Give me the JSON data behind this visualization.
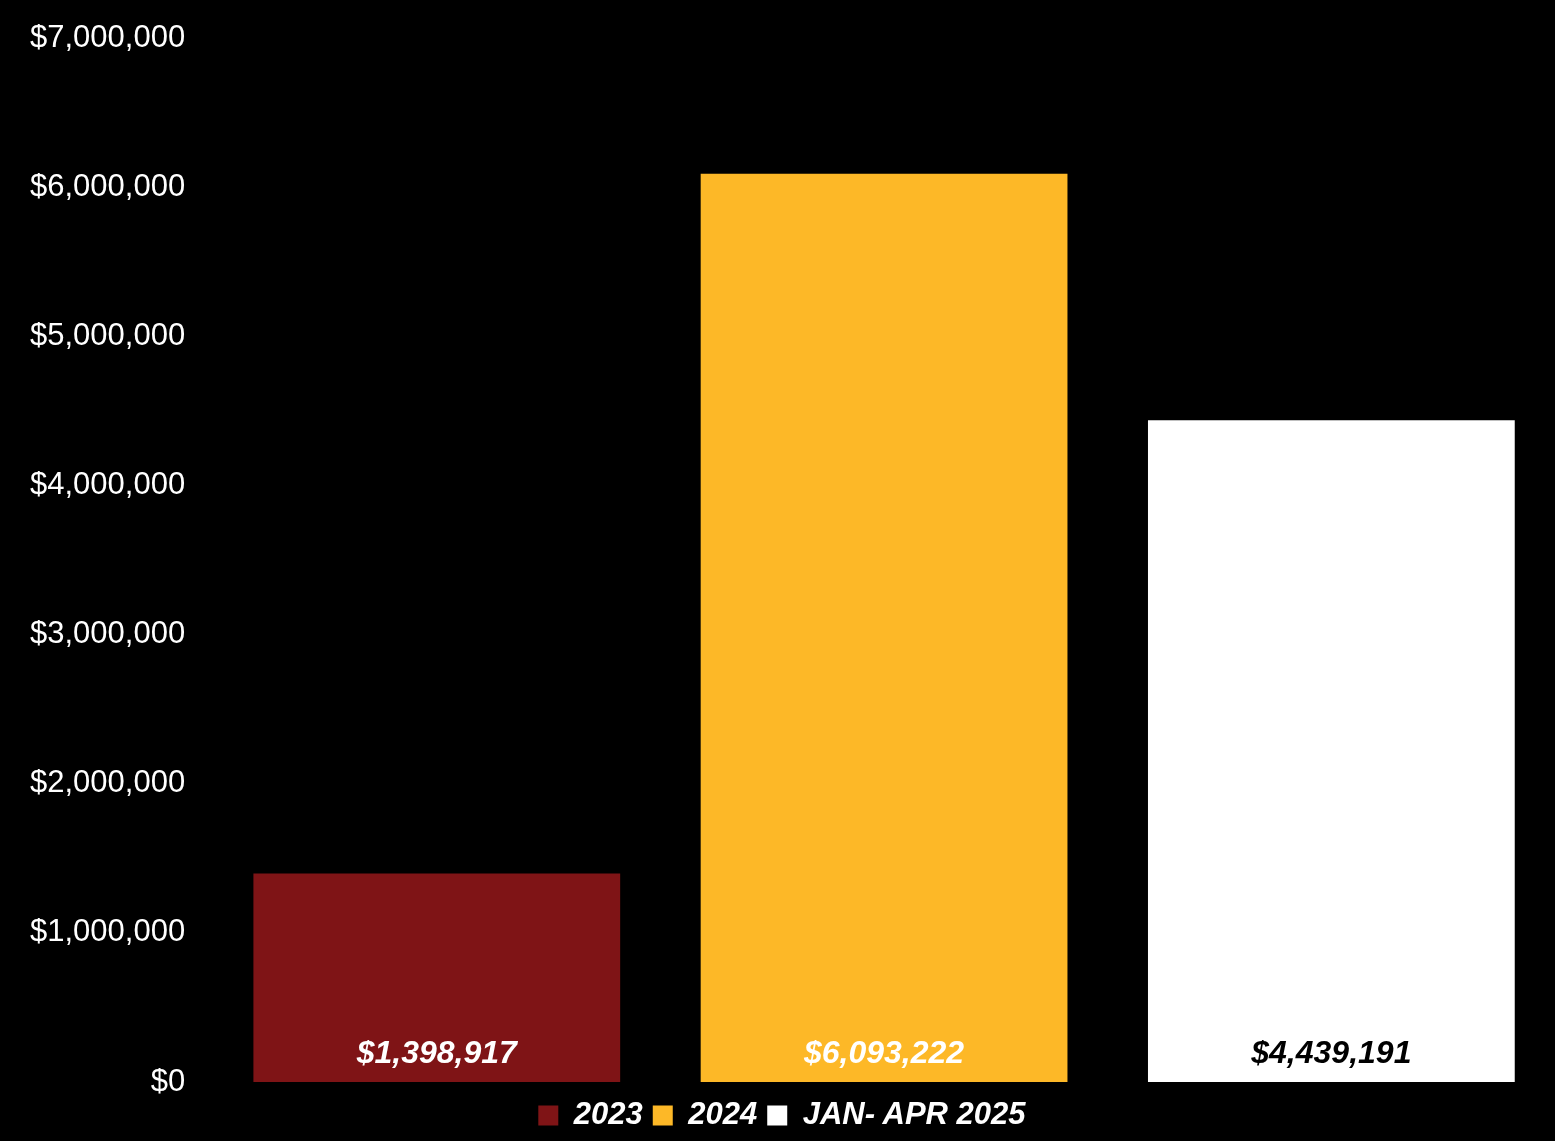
{
  "chart_data": {
    "type": "bar",
    "categories": [
      null
    ],
    "series": [
      {
        "name": "2023",
        "color": "#7f1416",
        "values": [
          1398917
        ],
        "value_labels": [
          "$1,398,917"
        ]
      },
      {
        "name": "2024",
        "color": "#fdb827",
        "values": [
          6093222
        ],
        "value_labels": [
          "$6,093,222"
        ]
      },
      {
        "name": "JAN- APR 2025",
        "color": "#ffffff",
        "values": [
          4439191
        ],
        "value_labels": [
          "$4,439,191"
        ]
      }
    ],
    "ylim": [
      0,
      7000000
    ],
    "yticks": [
      {
        "value": 0,
        "label": "$0"
      },
      {
        "value": 1000000,
        "label": "$1,000,000"
      },
      {
        "value": 2000000,
        "label": "$2,000,000"
      },
      {
        "value": 3000000,
        "label": "$3,000,000"
      },
      {
        "value": 4000000,
        "label": "$4,000,000"
      },
      {
        "value": 5000000,
        "label": "$5,000,000"
      },
      {
        "value": 6000000,
        "label": "$6,000,000"
      },
      {
        "value": 7000000,
        "label": "$7,000,000"
      }
    ],
    "grid": false,
    "legend": "bottom"
  }
}
